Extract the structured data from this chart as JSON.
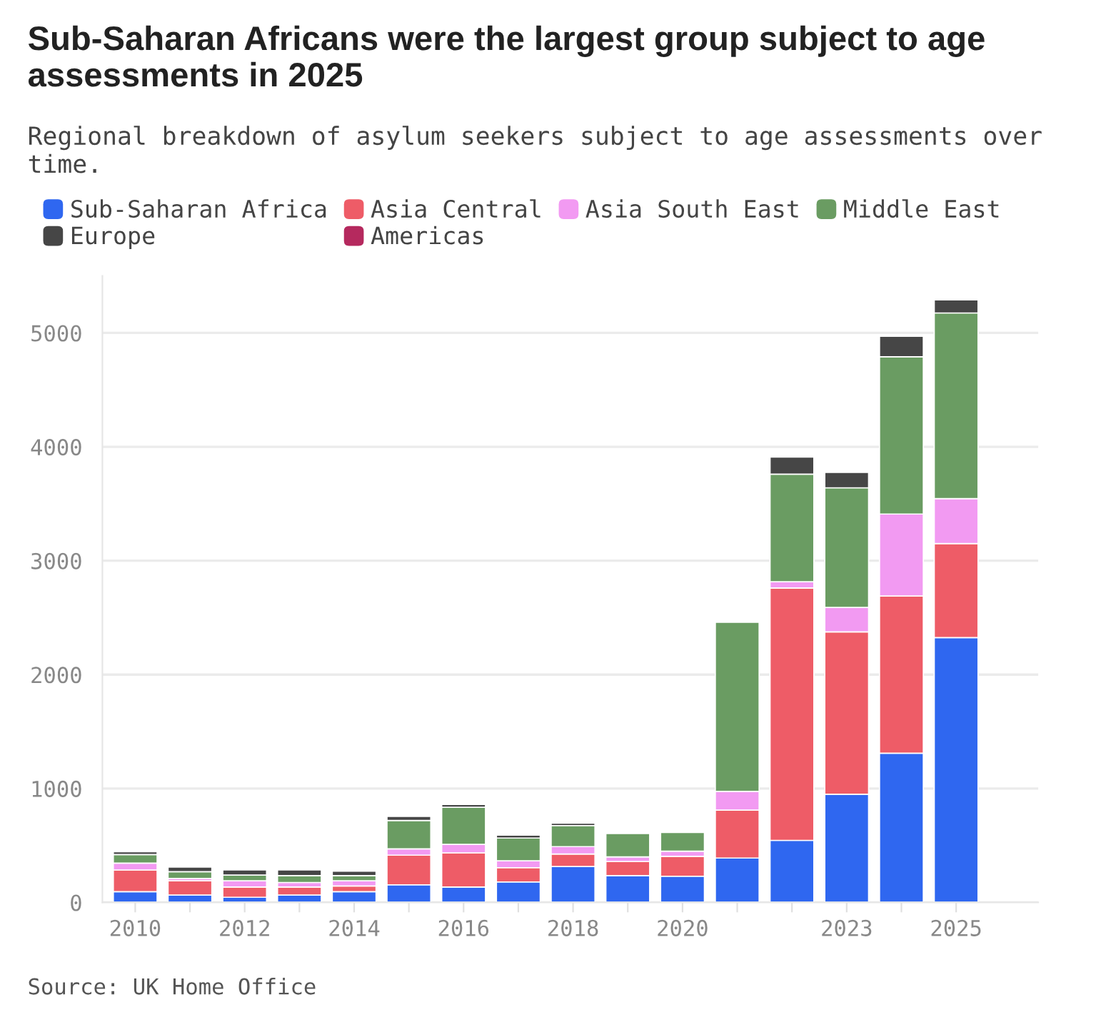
{
  "chart_data": {
    "type": "bar",
    "stacked": true,
    "title": "Sub-Saharan Africans were the largest group subject to age assessments in 2025",
    "subtitle": "Regional breakdown of asylum seekers subject to age assessments over time.",
    "annotations": [
      "Source: UK Home Office"
    ],
    "categories": [
      "2010",
      null,
      "2012",
      null,
      "2014",
      null,
      "2016",
      null,
      "2018",
      null,
      "2020",
      null,
      null,
      "2023",
      null,
      "2025"
    ],
    "series": [
      {
        "name": "Sub-Saharan Africa",
        "color": "#2f67f0",
        "values": [
          95,
          65,
          45,
          65,
          95,
          155,
          135,
          180,
          315,
          235,
          230,
          390,
          545,
          950,
          1310,
          2325
        ]
      },
      {
        "name": "Asia Central",
        "color": "#ee5c67",
        "values": [
          190,
          125,
          90,
          70,
          50,
          260,
          300,
          125,
          110,
          125,
          175,
          420,
          2215,
          1425,
          1380,
          825
        ]
      },
      {
        "name": "Asia South East",
        "color": "#f29af2",
        "values": [
          60,
          20,
          55,
          40,
          45,
          55,
          75,
          60,
          65,
          40,
          45,
          165,
          55,
          215,
          720,
          395
        ]
      },
      {
        "name": "Middle East",
        "color": "#6a9c62",
        "values": [
          75,
          60,
          50,
          60,
          45,
          250,
          325,
          200,
          185,
          205,
          165,
          1485,
          945,
          1050,
          1380,
          1630
        ]
      },
      {
        "name": "Europe",
        "color": "#464646",
        "values": [
          25,
          40,
          45,
          50,
          40,
          35,
          25,
          25,
          20,
          null,
          null,
          null,
          150,
          135,
          180,
          115
        ]
      },
      {
        "name": "Americas",
        "color": "#b5295e",
        "values": [
          null,
          null,
          null,
          null,
          null,
          null,
          null,
          null,
          null,
          null,
          null,
          null,
          null,
          null,
          null,
          null
        ]
      }
    ],
    "ylim": [
      0,
      5500
    ],
    "yticks": [
      0,
      1000,
      2000,
      3000,
      4000,
      5000
    ],
    "grid": "y",
    "legend": "top"
  }
}
